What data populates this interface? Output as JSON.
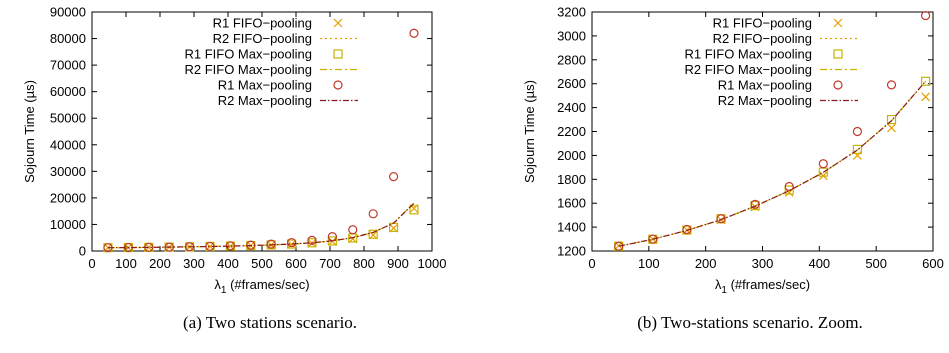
{
  "chart_data": [
    {
      "type": "scatter",
      "caption": "(a) Two stations scenario.",
      "xlabel": "λ",
      "xlabel_sub": "1",
      "xlabel_rest": " (#frames/sec)",
      "ylabel": "Sojourn Time (µs)",
      "xlim": [
        0,
        1000
      ],
      "ylim": [
        0,
        90000
      ],
      "xticks": [
        0,
        100,
        200,
        300,
        400,
        500,
        600,
        700,
        800,
        900,
        1000
      ],
      "yticks": [
        0,
        10000,
        20000,
        30000,
        40000,
        50000,
        60000,
        70000,
        80000,
        90000
      ],
      "legend_position": "top-left",
      "x": [
        47,
        107,
        167,
        227,
        287,
        347,
        407,
        467,
        527,
        587,
        647,
        707,
        767,
        827,
        887,
        947
      ],
      "series": [
        {
          "name": "R1 FIFO−pooling",
          "style": "cross",
          "color": "#e69f00",
          "values": [
            1245,
            1300,
            1375,
            1460,
            1570,
            1690,
            1830,
            2000,
            2230,
            2490,
            2950,
            3600,
            4600,
            6000,
            8600,
            16000
          ]
        },
        {
          "name": "R2 FIFO−pooling",
          "style": "dotted",
          "color": "#e69f00",
          "values": [
            1240,
            1298,
            1372,
            1462,
            1575,
            1705,
            1858,
            2045,
            2290,
            2620,
            3100,
            3850,
            5000,
            7000,
            10500,
            18000
          ]
        },
        {
          "name": "R1 FIFO Max−pooling",
          "style": "square",
          "color": "#c8b400",
          "values": [
            1240,
            1298,
            1375,
            1470,
            1580,
            1710,
            1860,
            2050,
            2300,
            2620,
            3100,
            3800,
            4900,
            6300,
            8900,
            15500
          ]
        },
        {
          "name": "R2 FIFO Max−pooling",
          "style": "dashdot",
          "color": "#c8b400",
          "values": [
            1240,
            1298,
            1372,
            1462,
            1575,
            1705,
            1858,
            2045,
            2290,
            2620,
            3100,
            3850,
            5000,
            7000,
            10500,
            18000
          ]
        },
        {
          "name": "R1 Max−pooling",
          "style": "circle",
          "color": "#c0392b",
          "values": [
            1240,
            1300,
            1380,
            1470,
            1590,
            1740,
            1930,
            2200,
            2590,
            3170,
            4000,
            5400,
            8000,
            14000,
            28000,
            82000
          ]
        },
        {
          "name": "R2 Max−pooling",
          "style": "dashdot2",
          "color": "#8b1a1a",
          "values": [
            1240,
            1298,
            1372,
            1462,
            1575,
            1705,
            1858,
            2045,
            2290,
            2620,
            3100,
            3850,
            5000,
            7000,
            10500,
            18000
          ]
        }
      ]
    },
    {
      "type": "scatter",
      "caption": "(b) Two-stations scenario. Zoom.",
      "xlabel": "λ",
      "xlabel_sub": "1",
      "xlabel_rest": " (#frames/sec)",
      "ylabel": "Sojourn Time (µs)",
      "xlim": [
        0,
        600
      ],
      "ylim": [
        1200,
        3200
      ],
      "xticks": [
        0,
        100,
        200,
        300,
        400,
        500,
        600
      ],
      "yticks": [
        1200,
        1400,
        1600,
        1800,
        2000,
        2200,
        2400,
        2600,
        2800,
        3000,
        3200
      ],
      "legend_position": "top-left",
      "x": [
        47,
        107,
        167,
        227,
        287,
        347,
        407,
        467,
        527,
        587
      ],
      "series": [
        {
          "name": "R1 FIFO−pooling",
          "style": "cross",
          "color": "#e69f00",
          "values": [
            1245,
            1300,
            1375,
            1460,
            1570,
            1690,
            1830,
            2000,
            2230,
            2490
          ]
        },
        {
          "name": "R2 FIFO−pooling",
          "style": "dotted",
          "color": "#e69f00",
          "values": [
            1240,
            1298,
            1372,
            1462,
            1575,
            1705,
            1858,
            2045,
            2290,
            2620
          ]
        },
        {
          "name": "R1 FIFO Max−pooling",
          "style": "square",
          "color": "#c8b400",
          "values": [
            1240,
            1298,
            1375,
            1470,
            1580,
            1710,
            1860,
            2050,
            2300,
            2620
          ]
        },
        {
          "name": "R2 FIFO Max−pooling",
          "style": "dashdot",
          "color": "#c8b400",
          "values": [
            1240,
            1298,
            1372,
            1462,
            1575,
            1705,
            1858,
            2045,
            2290,
            2620
          ]
        },
        {
          "name": "R1 Max−pooling",
          "style": "circle",
          "color": "#c0392b",
          "values": [
            1240,
            1300,
            1380,
            1470,
            1590,
            1740,
            1930,
            2200,
            2590,
            3170
          ]
        },
        {
          "name": "R2 Max−pooling",
          "style": "dashdot2",
          "color": "#8b1a1a",
          "values": [
            1240,
            1298,
            1372,
            1462,
            1575,
            1705,
            1858,
            2045,
            2290,
            2620
          ]
        }
      ]
    }
  ]
}
